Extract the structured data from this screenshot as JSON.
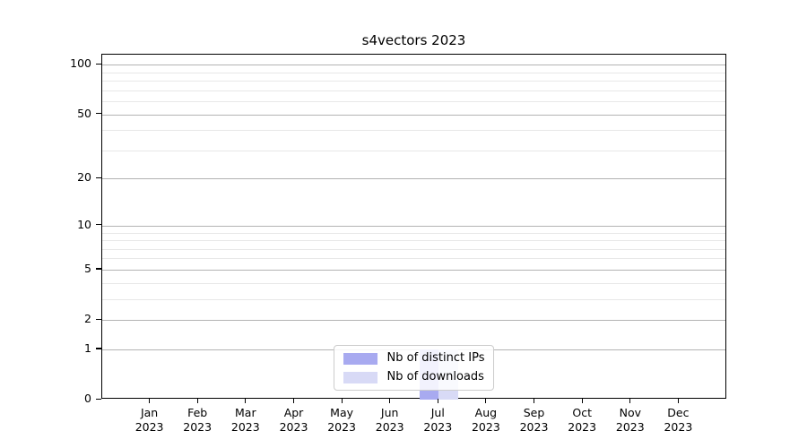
{
  "chart_data": {
    "type": "bar",
    "title": "s4vectors 2023",
    "categories": [
      "Jan 2023",
      "Feb 2023",
      "Mar 2023",
      "Apr 2023",
      "May 2023",
      "Jun 2023",
      "Jul 2023",
      "Aug 2023",
      "Sep 2023",
      "Oct 2023",
      "Nov 2023",
      "Dec 2023"
    ],
    "x_tick_line1": [
      "Jan",
      "Feb",
      "Mar",
      "Apr",
      "May",
      "Jun",
      "Jul",
      "Aug",
      "Sep",
      "Oct",
      "Nov",
      "Dec"
    ],
    "x_tick_line2": "2023",
    "series": [
      {
        "name": "Nb of distinct IPs",
        "color": "#a8aaf0",
        "values": [
          0,
          0,
          0,
          0,
          0,
          0,
          1,
          0,
          0,
          0,
          0,
          0
        ]
      },
      {
        "name": "Nb of downloads",
        "color": "#d8daf6",
        "values": [
          0,
          0,
          0,
          0,
          0,
          0,
          1,
          0,
          0,
          0,
          0,
          0
        ]
      }
    ],
    "y_axis": {
      "scale": "log1p",
      "major_ticks": [
        0,
        1,
        2,
        5,
        10,
        20,
        50,
        100
      ],
      "minor_ticks": [
        3,
        4,
        6,
        7,
        8,
        9,
        30,
        40,
        60,
        70,
        80,
        90
      ],
      "ylim": [
        0,
        115
      ]
    },
    "legend": {
      "position": "lower center"
    },
    "grid": {
      "major_color": "#b3b3b3",
      "minor_color": "#e8e8e8"
    },
    "bar_group_width_fraction": 0.8
  }
}
